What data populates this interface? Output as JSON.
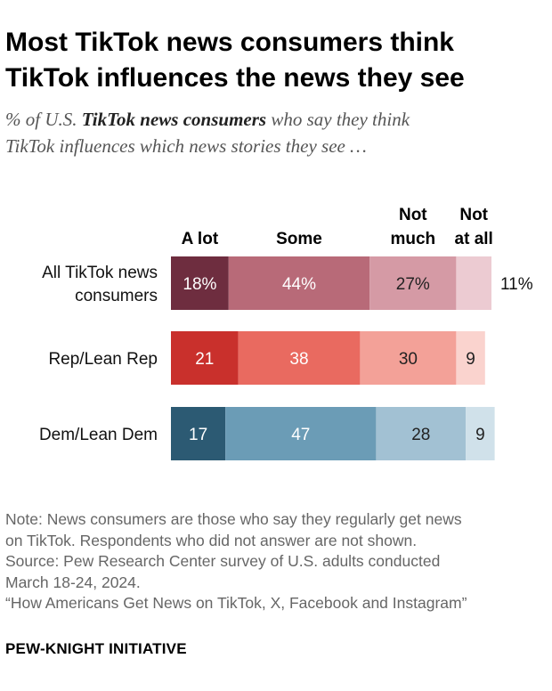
{
  "title": {
    "line1": "Most TikTok news consumers think",
    "line2": "TikTok influences the news they see"
  },
  "subtitle": {
    "prefix": "% of U.S. ",
    "emphasis": "TikTok news consumers",
    "middle": " who say they think",
    "line2": "TikTok influences which news stories they see …"
  },
  "chart_data": {
    "type": "bar",
    "orientation": "horizontal-stacked",
    "categories": [
      "All TikTok news consumers",
      "Rep/Lean Rep",
      "Dem/Lean Dem"
    ],
    "category_lines": [
      [
        "All TikTok news",
        "consumers"
      ],
      [
        "Rep/Lean Rep"
      ],
      [
        "Dem/Lean Dem"
      ]
    ],
    "series": [
      {
        "name": "A lot",
        "header_lines": [
          "A lot"
        ],
        "values": [
          18,
          21,
          17
        ]
      },
      {
        "name": "Some",
        "header_lines": [
          "Some"
        ],
        "values": [
          44,
          38,
          47
        ]
      },
      {
        "name": "Not much",
        "header_lines": [
          "Not",
          "much"
        ],
        "values": [
          27,
          30,
          28
        ]
      },
      {
        "name": "Not at all",
        "header_lines": [
          "Not",
          "at all"
        ],
        "values": [
          11,
          9,
          9
        ]
      }
    ],
    "labels": [
      [
        "18%",
        "44%",
        "27%",
        "11%"
      ],
      [
        "21",
        "38",
        "30",
        "9"
      ],
      [
        "17",
        "47",
        "28",
        "9"
      ]
    ],
    "colors": [
      [
        "#6e2d3f",
        "#b86a78",
        "#d59aa5",
        "#eccbd2"
      ],
      [
        "#c9302c",
        "#e96a60",
        "#f3a198",
        "#fad3ce"
      ],
      [
        "#2c5a73",
        "#6b9cb6",
        "#a2c1d3",
        "#d0e1ea"
      ]
    ],
    "label_colors": [
      [
        "#ffffff",
        "#ffffff",
        "#222222",
        "#222222"
      ],
      [
        "#ffffff",
        "#ffffff",
        "#222222",
        "#222222"
      ],
      [
        "#ffffff",
        "#ffffff",
        "#222222",
        "#222222"
      ]
    ],
    "outside_last_label": [
      true,
      false,
      false
    ],
    "xlim": [
      0,
      100
    ]
  },
  "note": {
    "lines": [
      "Note: News consumers are those who say they regularly get news",
      "on TikTok. Respondents who did not answer are not shown.",
      "Source: Pew Research Center survey of U.S. adults conducted",
      "March 18-24, 2024.",
      "“How Americans Get News on TikTok, X, Facebook and Instagram”"
    ]
  },
  "brand": "PEW-KNIGHT INITIATIVE"
}
